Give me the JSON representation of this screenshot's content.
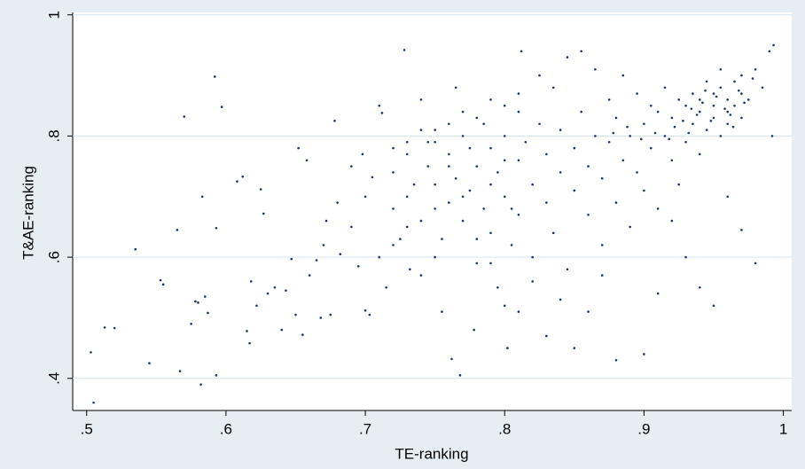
{
  "chart_data": {
    "type": "scatter",
    "x_label": "TE-ranking",
    "y_label": "T&AE-ranking",
    "xlim": [
      0.49,
      1.006
    ],
    "ylim": [
      0.347,
      1.004
    ],
    "xticks": [
      {
        "value": 0.5,
        "label": ".5"
      },
      {
        "value": 0.6,
        "label": ".6"
      },
      {
        "value": 0.7,
        "label": ".7"
      },
      {
        "value": 0.8,
        "label": ".8"
      },
      {
        "value": 0.9,
        "label": ".9"
      },
      1
    ],
    "yticks": [
      {
        "value": 0.4,
        "label": ".4"
      },
      {
        "value": 0.6,
        "label": ".6"
      },
      {
        "value": 0.8,
        "label": ".8"
      },
      1
    ],
    "grid": true,
    "color": "#1c3567",
    "x": [
      0.503,
      0.505,
      0.513,
      0.52,
      0.535,
      0.545,
      0.553,
      0.555,
      0.565,
      0.567,
      0.57,
      0.575,
      0.578,
      0.58,
      0.582,
      0.583,
      0.585,
      0.587,
      0.592,
      0.593,
      0.593,
      0.597,
      0.608,
      0.612,
      0.615,
      0.617,
      0.618,
      0.622,
      0.625,
      0.627,
      0.63,
      0.635,
      0.64,
      0.643,
      0.647,
      0.65,
      0.652,
      0.655,
      0.658,
      0.66,
      0.665,
      0.668,
      0.67,
      0.672,
      0.675,
      0.678,
      0.68,
      0.682,
      0.69,
      0.695,
      0.698,
      0.7,
      0.703,
      0.705,
      0.71,
      0.712,
      0.715,
      0.72,
      0.725,
      0.728,
      0.732,
      0.735,
      0.74,
      0.745,
      0.75,
      0.755,
      0.76,
      0.762,
      0.765,
      0.768,
      0.77,
      0.775,
      0.778,
      0.78,
      0.785,
      0.79,
      0.795,
      0.8,
      0.802,
      0.805,
      0.81,
      0.812,
      0.72,
      0.73,
      0.73,
      0.74,
      0.745,
      0.75,
      0.75,
      0.755,
      0.76,
      0.76,
      0.765,
      0.77,
      0.77,
      0.775,
      0.78,
      0.78,
      0.785,
      0.79,
      0.79,
      0.795,
      0.8,
      0.8,
      0.805,
      0.81,
      0.81,
      0.815,
      0.82,
      0.82,
      0.825,
      0.83,
      0.83,
      0.835,
      0.84,
      0.84,
      0.845,
      0.85,
      0.85,
      0.855,
      0.86,
      0.86,
      0.865,
      0.87,
      0.87,
      0.875,
      0.88,
      0.88,
      0.885,
      0.89,
      0.89,
      0.895,
      0.9,
      0.9,
      0.905,
      0.91,
      0.91,
      0.915,
      0.92,
      0.92,
      0.925,
      0.93,
      0.93,
      0.935,
      0.94,
      0.94,
      0.94,
      0.945,
      0.95,
      0.95,
      0.95,
      0.955,
      0.955,
      0.96,
      0.96,
      0.96,
      0.965,
      0.965,
      0.97,
      0.97,
      0.97,
      0.975,
      0.98,
      0.985,
      0.99,
      0.993,
      0.992,
      0.98,
      0.97,
      0.96,
      0.95,
      0.94,
      0.93,
      0.92,
      0.91,
      0.9,
      0.88,
      0.87,
      0.86,
      0.85,
      0.84,
      0.83,
      0.82,
      0.81,
      0.8,
      0.79,
      0.75,
      0.74,
      0.73,
      0.72,
      0.71,
      0.7,
      0.69,
      0.955,
      0.945,
      0.935,
      0.925,
      0.915,
      0.905,
      0.895,
      0.885,
      0.875,
      0.865,
      0.855,
      0.845,
      0.835,
      0.825,
      0.81,
      0.8,
      0.79,
      0.78,
      0.77,
      0.76,
      0.75,
      0.74,
      0.73,
      0.72,
      0.958,
      0.962,
      0.948,
      0.952,
      0.942,
      0.938,
      0.928,
      0.932,
      0.922,
      0.918,
      0.908,
      0.898,
      0.888,
      0.878,
      0.968,
      0.972,
      0.978,
      0.944,
      0.934,
      0.964
    ],
    "y": [
      0.443,
      0.36,
      0.484,
      0.483,
      0.613,
      0.425,
      0.562,
      0.555,
      0.645,
      0.412,
      0.832,
      0.49,
      0.527,
      0.525,
      0.39,
      0.7,
      0.535,
      0.508,
      0.898,
      0.405,
      0.648,
      0.848,
      0.725,
      0.733,
      0.478,
      0.458,
      0.56,
      0.52,
      0.712,
      0.672,
      0.54,
      0.55,
      0.48,
      0.545,
      0.597,
      0.505,
      0.78,
      0.472,
      0.76,
      0.57,
      0.595,
      0.5,
      0.62,
      0.66,
      0.505,
      0.825,
      0.69,
      0.605,
      0.65,
      0.585,
      0.77,
      0.512,
      0.505,
      0.732,
      0.85,
      0.838,
      0.55,
      0.68,
      0.63,
      0.942,
      0.58,
      0.72,
      0.86,
      0.79,
      0.68,
      0.51,
      0.75,
      0.432,
      0.88,
      0.405,
      0.7,
      0.78,
      0.48,
      0.63,
      0.82,
      0.72,
      0.55,
      0.76,
      0.45,
      0.68,
      0.84,
      0.94,
      0.74,
      0.7,
      0.79,
      0.66,
      0.75,
      0.72,
      0.81,
      0.63,
      0.69,
      0.77,
      0.73,
      0.66,
      0.8,
      0.71,
      0.75,
      0.59,
      0.68,
      0.78,
      0.64,
      0.74,
      0.7,
      0.8,
      0.62,
      0.76,
      0.67,
      0.79,
      0.72,
      0.6,
      0.82,
      0.69,
      0.77,
      0.64,
      0.74,
      0.81,
      0.58,
      0.71,
      0.78,
      0.84,
      0.67,
      0.75,
      0.8,
      0.62,
      0.73,
      0.79,
      0.69,
      0.83,
      0.76,
      0.8,
      0.65,
      0.74,
      0.82,
      0.71,
      0.78,
      0.84,
      0.68,
      0.8,
      0.76,
      0.83,
      0.72,
      0.85,
      0.79,
      0.82,
      0.86,
      0.77,
      0.84,
      0.81,
      0.87,
      0.83,
      0.85,
      0.8,
      0.88,
      0.84,
      0.86,
      0.82,
      0.89,
      0.85,
      0.87,
      0.9,
      0.83,
      0.86,
      0.91,
      0.88,
      0.94,
      0.95,
      0.8,
      0.59,
      0.645,
      0.7,
      0.52,
      0.55,
      0.6,
      0.66,
      0.54,
      0.44,
      0.43,
      0.57,
      0.51,
      0.45,
      0.53,
      0.47,
      0.56,
      0.51,
      0.52,
      0.59,
      0.6,
      0.57,
      0.65,
      0.62,
      0.6,
      0.7,
      0.75,
      0.91,
      0.89,
      0.87,
      0.86,
      0.88,
      0.85,
      0.87,
      0.9,
      0.86,
      0.91,
      0.94,
      0.93,
      0.88,
      0.9,
      0.87,
      0.85,
      0.86,
      0.83,
      0.84,
      0.82,
      0.79,
      0.81,
      0.77,
      0.78,
      0.845,
      0.835,
      0.825,
      0.865,
      0.855,
      0.835,
      0.825,
      0.805,
      0.815,
      0.795,
      0.805,
      0.795,
      0.815,
      0.805,
      0.875,
      0.855,
      0.895,
      0.875,
      0.845,
      0.815
    ]
  }
}
